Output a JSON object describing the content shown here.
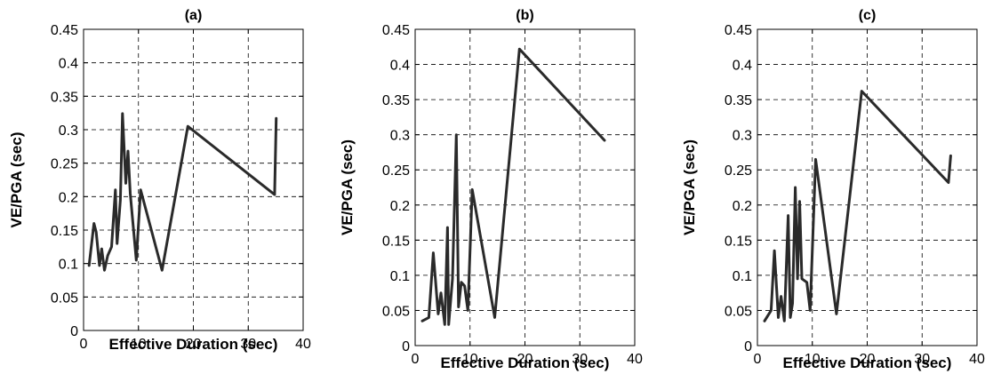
{
  "figure": {
    "background": "#ffffff",
    "line_color": "#2a2a2a"
  },
  "chart_data": [
    {
      "type": "line",
      "title": "(a)",
      "xlabel": "Effective Duration (sec)",
      "ylabel": "VE/PGA (sec)",
      "xlim": [
        0,
        40
      ],
      "ylim": [
        0,
        0.45
      ],
      "xticks": [
        "0",
        "10",
        "20",
        "30",
        "40"
      ],
      "yticks": [
        "0",
        "0.05",
        "0.1",
        "0.15",
        "0.2",
        "0.25",
        "0.3",
        "0.35",
        "0.4",
        "0.45"
      ],
      "grid": true,
      "series": [
        {
          "x": [
            1.0,
            1.9,
            2.3,
            2.9,
            3.3,
            3.8,
            4.4,
            5.1,
            5.8,
            6.1,
            6.7,
            7.1,
            7.7,
            8.1,
            8.5,
            9.6,
            10.4,
            14.3,
            19.0,
            34.8,
            35.1
          ],
          "y": [
            0.097,
            0.16,
            0.147,
            0.097,
            0.122,
            0.09,
            0.112,
            0.125,
            0.21,
            0.13,
            0.195,
            0.324,
            0.22,
            0.268,
            0.205,
            0.105,
            0.21,
            0.09,
            0.305,
            0.203,
            0.317
          ]
        }
      ]
    },
    {
      "type": "line",
      "title": "(b)",
      "xlabel": "Effective Duration (sec)",
      "ylabel": "VE/PGA (sec)",
      "xlim": [
        0,
        40
      ],
      "ylim": [
        0,
        0.45
      ],
      "xticks": [
        "0",
        "10",
        "20",
        "30",
        "40"
      ],
      "yticks": [
        "0",
        "0.05",
        "0.1",
        "0.15",
        "0.2",
        "0.25",
        "0.3",
        "0.35",
        "0.4",
        "0.45"
      ],
      "grid": true,
      "series": [
        {
          "x": [
            1.3,
            2.5,
            3.3,
            4.2,
            4.7,
            5.4,
            5.9,
            6.1,
            6.8,
            7.5,
            7.9,
            8.4,
            9.0,
            9.6,
            10.4,
            14.5,
            19.0,
            34.5
          ],
          "y": [
            0.035,
            0.04,
            0.132,
            0.045,
            0.075,
            0.03,
            0.168,
            0.03,
            0.095,
            0.3,
            0.055,
            0.09,
            0.085,
            0.05,
            0.222,
            0.04,
            0.422,
            0.292
          ]
        }
      ]
    },
    {
      "type": "line",
      "title": "(c)",
      "xlabel": "Effective Duration (sec)",
      "ylabel": "VE/PGA (sec)",
      "xlim": [
        0,
        40
      ],
      "ylim": [
        0,
        0.45
      ],
      "xticks": [
        "0",
        "10",
        "20",
        "30",
        "40"
      ],
      "yticks": [
        "0",
        "0.05",
        "0.1",
        "0.15",
        "0.2",
        "0.25",
        "0.3",
        "0.35",
        "0.4",
        "0.45"
      ],
      "grid": true,
      "series": [
        {
          "x": [
            1.3,
            2.5,
            3.1,
            3.8,
            4.3,
            4.9,
            5.6,
            6.0,
            6.4,
            6.9,
            7.3,
            7.7,
            8.1,
            9.0,
            9.6,
            10.6,
            14.4,
            19.0,
            34.8,
            35.2
          ],
          "y": [
            0.035,
            0.05,
            0.135,
            0.04,
            0.07,
            0.035,
            0.185,
            0.04,
            0.06,
            0.225,
            0.095,
            0.205,
            0.095,
            0.09,
            0.05,
            0.265,
            0.045,
            0.362,
            0.232,
            0.27
          ]
        }
      ]
    }
  ]
}
